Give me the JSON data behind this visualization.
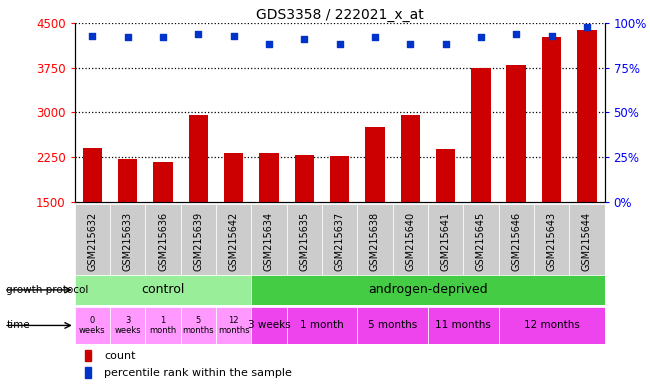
{
  "title": "GDS3358 / 222021_x_at",
  "samples": [
    "GSM215632",
    "GSM215633",
    "GSM215636",
    "GSM215639",
    "GSM215642",
    "GSM215634",
    "GSM215635",
    "GSM215637",
    "GSM215638",
    "GSM215640",
    "GSM215641",
    "GSM215645",
    "GSM215646",
    "GSM215643",
    "GSM215644"
  ],
  "counts": [
    2400,
    2220,
    2160,
    2960,
    2310,
    2310,
    2285,
    2265,
    2760,
    2960,
    2380,
    3750,
    3800,
    4260,
    4390
  ],
  "percentiles": [
    93,
    92,
    92,
    94,
    93,
    88,
    91,
    88,
    92,
    88,
    88,
    92,
    94,
    93,
    98
  ],
  "ymin": 1500,
  "ymax": 4500,
  "yticks": [
    1500,
    2250,
    3000,
    3750,
    4500
  ],
  "right_yticks": [
    0,
    25,
    50,
    75,
    100
  ],
  "bar_color": "#cc0000",
  "dot_color": "#0033cc",
  "bg_color": "#ffffff",
  "xticklabel_bg": "#cccccc",
  "control_color": "#99ee99",
  "androgen_color": "#44cc44",
  "time_ctrl_color": "#ff99ff",
  "time_and_color": "#ee44ee",
  "control_label": "control",
  "androgen_label": "androgen-deprived",
  "growth_protocol_label": "growth protocol",
  "time_label": "time",
  "time_control": [
    "0\nweeks",
    "3\nweeks",
    "1\nmonth",
    "5\nmonths",
    "12\nmonths"
  ],
  "time_androgen": [
    "3 weeks",
    "1 month",
    "5 months",
    "11 months",
    "12 months"
  ],
  "n_control": 5,
  "n_androgen": 10,
  "and_group_sizes": [
    1,
    2,
    2,
    2,
    3
  ],
  "legend_count": "count",
  "legend_percentile": "percentile rank within the sample"
}
